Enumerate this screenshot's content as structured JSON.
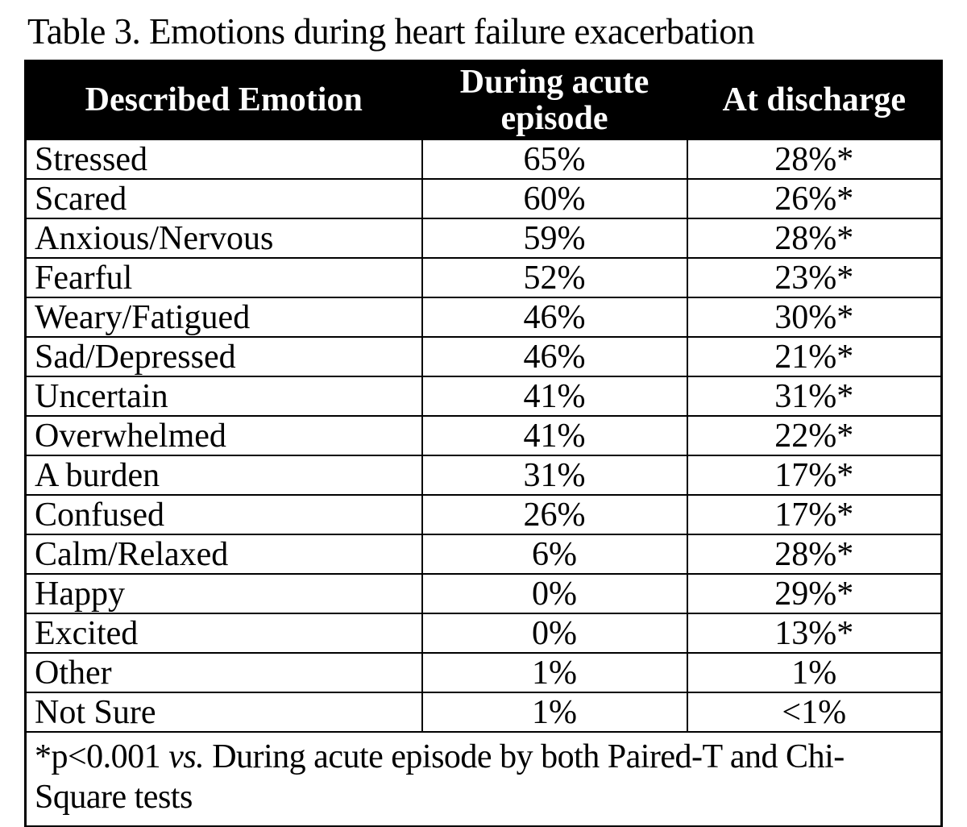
{
  "caption": "Table 3. Emotions during heart failure exacerbation",
  "colors": {
    "header_background": "#000000",
    "header_text": "#ffffff",
    "body_text": "#000000",
    "border": "#000000"
  },
  "table": {
    "header": {
      "col_emotion": "Described Emotion",
      "col_acute": "During acute episode",
      "col_discharge": "At discharge"
    },
    "rows": [
      {
        "emotion": "Stressed",
        "acute": "65%",
        "discharge": "28%*"
      },
      {
        "emotion": "Scared",
        "acute": "60%",
        "discharge": "26%*"
      },
      {
        "emotion": "Anxious/Nervous",
        "acute": "59%",
        "discharge": "28%*"
      },
      {
        "emotion": "Fearful",
        "acute": "52%",
        "discharge": "23%*"
      },
      {
        "emotion": "Weary/Fatigued",
        "acute": "46%",
        "discharge": "30%*"
      },
      {
        "emotion": "Sad/Depressed",
        "acute": "46%",
        "discharge": "21%*"
      },
      {
        "emotion": "Uncertain",
        "acute": "41%",
        "discharge": "31%*"
      },
      {
        "emotion": "Overwhelmed",
        "acute": "41%",
        "discharge": "22%*"
      },
      {
        "emotion": "A burden",
        "acute": "31%",
        "discharge": "17%*"
      },
      {
        "emotion": "Confused",
        "acute": "26%",
        "discharge": "17%*"
      },
      {
        "emotion": "Calm/Relaxed",
        "acute": "6%",
        "discharge": "28%*"
      },
      {
        "emotion": "Happy",
        "acute": "0%",
        "discharge": "29%*"
      },
      {
        "emotion": "Excited",
        "acute": "0%",
        "discharge": "13%*"
      },
      {
        "emotion": "Other",
        "acute": "1%",
        "discharge": "1%"
      },
      {
        "emotion": "Not Sure",
        "acute": "1%",
        "discharge": "<1%"
      }
    ],
    "footnote": {
      "prefix": "*p<0.001 ",
      "vs": "vs.",
      "suffix": " During acute episode by both Paired-T and Chi-Square tests"
    }
  }
}
